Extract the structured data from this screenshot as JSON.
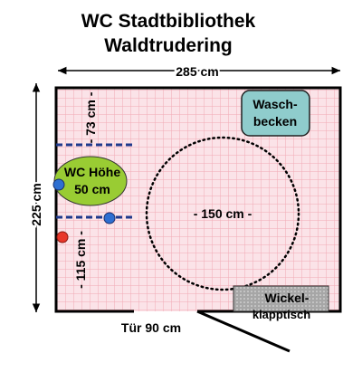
{
  "title": {
    "line1": "WC Stadtbibliothek",
    "line2": "Waldtrudering"
  },
  "dimensions": {
    "width": "285 cm",
    "depth": "225 cm",
    "door": "Tür 90 cm",
    "turning_circle": "- 150 cm -",
    "wall_to_toilet_top": "- 73 cm -",
    "wall_to_toilet_bottom": "- 115 cm -"
  },
  "fixtures": {
    "toilet": {
      "line1": "WC Höhe",
      "line2": "50 cm"
    },
    "sink": {
      "line1": "Wasch-",
      "line2": "becken"
    },
    "changing_table": {
      "line1": "Wickel-",
      "line2": "klapptisch"
    }
  },
  "colors": {
    "floor": "#fbe3e8",
    "floor_grid": "#f2a9b5",
    "wall": "#000000",
    "toilet": "#99cc33",
    "sink": "#8fcccc",
    "changing_table": "#a6a6a6",
    "grab_bar": "#1f3a8c",
    "fixture_dot": "#2e6fd1",
    "alarm_dot": "#e8372a"
  }
}
